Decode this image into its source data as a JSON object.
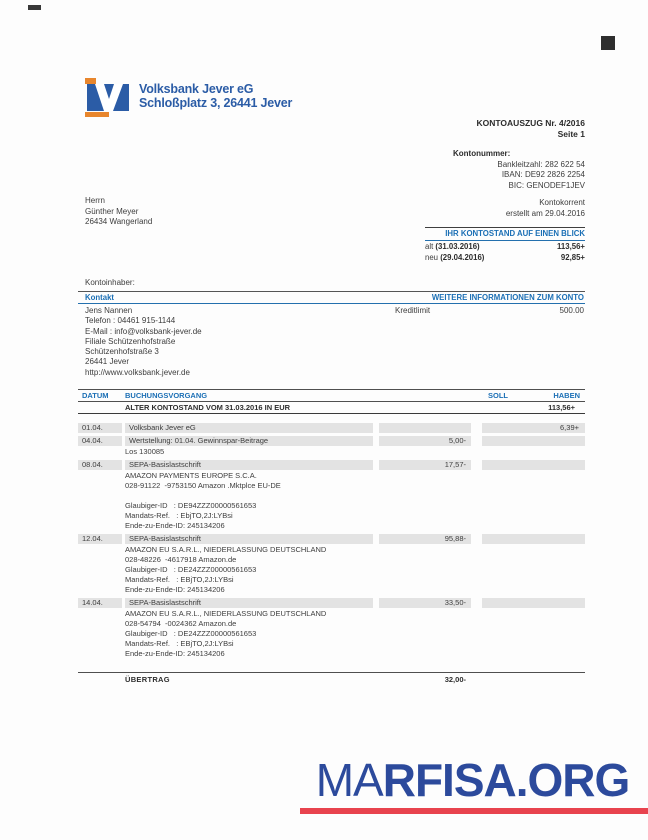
{
  "bank": {
    "name": "Volksbank Jever eG",
    "address": "Schloßplatz 3, 26441 Jever"
  },
  "statement": {
    "title": "KONTOAUSZUG Nr. 4/2016",
    "page": "Seite 1",
    "account_number_label": "Kontonummer:",
    "bank_code": "Bankleitzahl: 282 622 54",
    "iban": "IBAN: DE92 2826 2254",
    "bic": "BIC: GENODEF1JEV",
    "account_type": "Kontokorrent",
    "created_at": "erstellt am 29.04.2016"
  },
  "recipient": {
    "salutation": "Herrn",
    "name": "Günther Meyer",
    "city": "26434 Wangerland"
  },
  "balance_box": {
    "title": "IHR KONTOSTAND AUF EINEN BLICK",
    "old": {
      "label": "alt",
      "date": "(31.03.2016)",
      "value": "113,56+"
    },
    "new": {
      "label": "neu",
      "date": "(29.04.2016)",
      "value": "92,85+"
    }
  },
  "holder_label": "Kontoinhaber:",
  "contact": {
    "title": "Kontakt",
    "lines": [
      "Jens Nannen",
      "Telefon : 04461 915-1144",
      "E-Mail : info@volksbank-jever.de",
      "Filiale Schützenhofstraße",
      "Schützenhofstraße 3",
      "26441 Jever",
      "http://www.volksbank.jever.de"
    ]
  },
  "account_info": {
    "title": "WEITERE INFORMATIONEN ZUM KONTO",
    "credit_limit_label": "Kreditlimit",
    "credit_limit_value": "500.00"
  },
  "table": {
    "headers": {
      "date": "DATUM",
      "transaction": "BUCHUNGSVORGANG",
      "debit": "SOLL",
      "credit": "HABEN"
    },
    "opening": {
      "label": "ALTER KONTOSTAND VOM 31.03.2016 IN EUR",
      "value": "113,56+"
    },
    "rows": [
      {
        "date": "01.04.",
        "title": "Volksbank Jever eG",
        "details": [],
        "debit": "",
        "credit": "6,39+"
      },
      {
        "date": "04.04.",
        "title": "Wertstellung: 01.04. Gewinnspar-Beitrage",
        "details": [
          "Los 130085"
        ],
        "debit": "5,00-",
        "credit": ""
      },
      {
        "date": "08.04.",
        "title": "SEPA-Basislastschrift",
        "details": [
          "AMAZON PAYMENTS EUROPE S.C.A.",
          "028-91122  -9753150 Amazon .Mktplce EU-DE",
          "",
          "Glaubiger-ID   : DE94ZZZ00000561653",
          "Mandats-Ref.   : EbjTO,2J:LYBsi",
          "Ende-zu-Ende-ID: 245134206"
        ],
        "debit": "17,57-",
        "credit": ""
      },
      {
        "date": "12.04.",
        "title": "SEPA-Basislastschrift",
        "details": [
          "AMAZON EU S.A.R.L., NIEDERLASSUNG DEUTSCHLAND",
          "028-48226  -4617918 Amazon.de",
          "Glaubiger-ID   : DE24ZZZ00000561653",
          "Mandats-Ref.   : EBjTO,2J:LYBsi",
          "Ende-zu-Ende-ID: 245134206"
        ],
        "debit": "95,88-",
        "credit": ""
      },
      {
        "date": "14.04.",
        "title": "SEPA-Basislastschrift",
        "details": [
          "AMAZON EU S.A.R.L., NIEDERLASSUNG DEUTSCHLAND",
          "028-54794  -0024362 Amazon.de",
          "Glaubiger-ID   : DE24ZZZ00000561653",
          "Mandats-Ref.   : EBjTO,2J:LYBsi",
          "Ende-zu-Ende-ID: 245134206"
        ],
        "debit": "33,50-",
        "credit": ""
      }
    ],
    "carryover": {
      "label": "ÜBERTRAG",
      "value": "32,00-"
    }
  },
  "watermark": {
    "text_light": "MA",
    "text_bold": "RFISA.ORG"
  },
  "colors": {
    "header_blue": "#1b6fb5",
    "logo_blue": "#2b5ca6",
    "logo_orange": "#e8862d",
    "gray_highlight": "#e3e3e3",
    "watermark_blue": "#2c4a9c",
    "watermark_red": "#e8434e"
  }
}
